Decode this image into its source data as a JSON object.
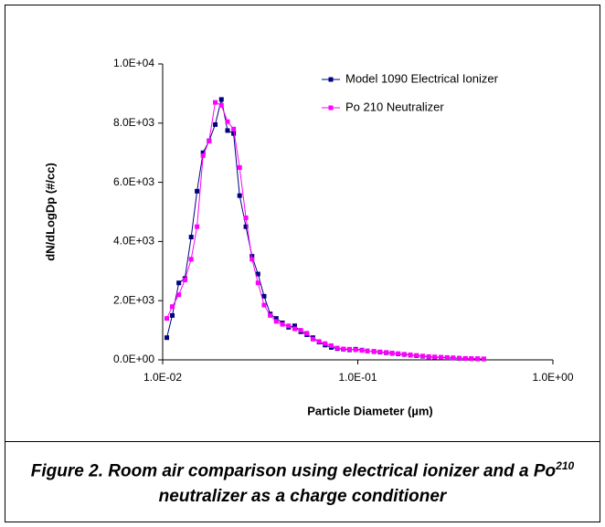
{
  "chart_data": {
    "type": "line",
    "xlabel": "Particle Diameter (µm)",
    "ylabel": "dN/dLogDp (#/cc)",
    "xscale": "log",
    "xlim": [
      0.01,
      1
    ],
    "xticks": [
      {
        "value": 0.01,
        "label": "1.0E-02"
      },
      {
        "value": 0.1,
        "label": "1.0E-01"
      },
      {
        "value": 1,
        "label": "1.0E+00"
      }
    ],
    "ylim": [
      0,
      10000
    ],
    "yticks": [
      {
        "value": 0,
        "label": "0.0E+00"
      },
      {
        "value": 2000,
        "label": "2.0E+03"
      },
      {
        "value": 4000,
        "label": "4.0E+03"
      },
      {
        "value": 6000,
        "label": "6.0E+03"
      },
      {
        "value": 8000,
        "label": "8.0E+03"
      },
      {
        "value": 10000,
        "label": "1.0E+04"
      }
    ],
    "grid": false,
    "legend": "upper right",
    "x": [
      0.0105,
      0.0112,
      0.0121,
      0.013,
      0.014,
      0.015,
      0.0161,
      0.0173,
      0.0186,
      0.02,
      0.0215,
      0.0231,
      0.0248,
      0.0267,
      0.0287,
      0.0308,
      0.0331,
      0.0356,
      0.0382,
      0.0411,
      0.0442,
      0.0475,
      0.051,
      0.0548,
      0.0589,
      0.0633,
      0.068,
      0.0731,
      0.0785,
      0.0844,
      0.0907,
      0.0975,
      0.105,
      0.112,
      0.121,
      0.13,
      0.14,
      0.15,
      0.161,
      0.173,
      0.186,
      0.2,
      0.215,
      0.231,
      0.248,
      0.267,
      0.287,
      0.308,
      0.331,
      0.356,
      0.382,
      0.411,
      0.442
    ],
    "series": [
      {
        "name": "Model 1090 Electrical Ionizer",
        "color": "#000080",
        "values": [
          750,
          1500,
          2600,
          2750,
          4150,
          5700,
          7000,
          7400,
          7950,
          8800,
          7750,
          7650,
          5550,
          4500,
          3500,
          2900,
          2150,
          1550,
          1400,
          1250,
          1100,
          1150,
          950,
          850,
          750,
          600,
          500,
          420,
          380,
          360,
          340,
          360,
          330,
          300,
          280,
          260,
          240,
          220,
          200,
          180,
          160,
          140,
          120,
          100,
          90,
          80,
          70,
          60,
          50,
          45,
          40,
          35,
          30
        ]
      },
      {
        "name": "Po 210 Neutralizer",
        "color": "#ff00ff",
        "values": [
          1400,
          1800,
          2200,
          2700,
          3400,
          4500,
          6900,
          7400,
          8700,
          8600,
          8050,
          7800,
          6500,
          4800,
          3400,
          2600,
          1850,
          1500,
          1300,
          1200,
          1150,
          1050,
          1000,
          900,
          700,
          620,
          550,
          480,
          400,
          370,
          360,
          340,
          320,
          300,
          290,
          270,
          250,
          230,
          210,
          190,
          170,
          150,
          130,
          110,
          100,
          90,
          80,
          70,
          60,
          50,
          45,
          40,
          35
        ]
      }
    ]
  },
  "caption": {
    "before": "Figure 2. Room air comparison using electrical ionizer and a Po",
    "superscript": "210",
    "after": "neutralizer as a charge conditioner"
  }
}
